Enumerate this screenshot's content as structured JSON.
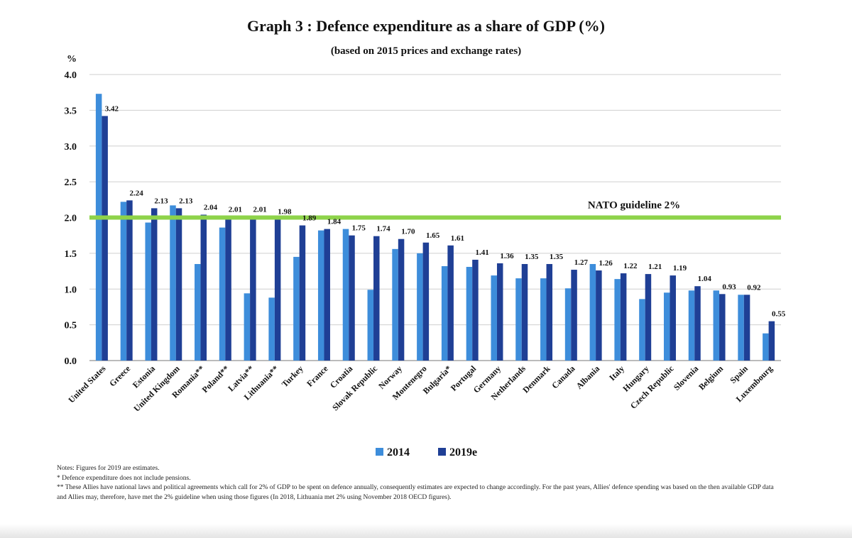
{
  "chart_data": {
    "type": "bar",
    "title": "Graph 3 : Defence expenditure as a share of GDP (%)",
    "subtitle": "(based on 2015 prices and exchange rates)",
    "ylabel": "%",
    "ylim": [
      0,
      4.0
    ],
    "yticks": [
      "0.0",
      "0.5",
      "1.0",
      "1.5",
      "2.0",
      "2.5",
      "3.0",
      "3.5",
      "4.0"
    ],
    "grid": true,
    "legend_position": "bottom-center",
    "categories": [
      "United States",
      "Greece",
      "Estonia",
      "United Kingdom",
      "Romania**",
      "Poland**",
      "Latvia**",
      "Lithuania**",
      "Turkey",
      "France",
      "Croatia",
      "Slovak Republic",
      "Norway",
      "Montenegro",
      "Bulgaria*",
      "Portugal",
      "Germany",
      "Netherlands",
      "Denmark",
      "Canada",
      "Albania",
      "Italy",
      "Hungary",
      "Czech Republic",
      "Slovenia",
      "Belgium",
      "Spain",
      "Luxembourg"
    ],
    "series": [
      {
        "name": "2014",
        "color": "#3d8ddb",
        "values": [
          3.73,
          2.22,
          1.93,
          2.17,
          1.35,
          1.86,
          0.94,
          0.88,
          1.45,
          1.82,
          1.84,
          0.99,
          1.56,
          1.5,
          1.32,
          1.31,
          1.19,
          1.15,
          1.15,
          1.01,
          1.35,
          1.14,
          0.86,
          0.95,
          0.98,
          0.98,
          0.92,
          0.38
        ]
      },
      {
        "name": "2019e",
        "color": "#1f3f95",
        "values": [
          3.42,
          2.24,
          2.13,
          2.13,
          2.04,
          2.01,
          2.01,
          1.98,
          1.89,
          1.84,
          1.75,
          1.74,
          1.7,
          1.65,
          1.61,
          1.41,
          1.36,
          1.35,
          1.35,
          1.27,
          1.26,
          1.22,
          1.21,
          1.19,
          1.04,
          0.93,
          0.92,
          0.55
        ]
      }
    ],
    "data_labels": [
      "3.42",
      "2.24",
      "2.13",
      "2.13",
      "2.04",
      "2.01",
      "2.01",
      "1.98",
      "1.89",
      "1.84",
      "1.75",
      "1.74",
      "1.70",
      "1.65",
      "1.61",
      "1.41",
      "1.36",
      "1.35",
      "1.35",
      "1.27",
      "1.26",
      "1.22",
      "1.21",
      "1.19",
      "1.04",
      "0.93",
      "0.92",
      "0.55"
    ],
    "reference_line": {
      "value": 2.0,
      "label": "NATO guideline 2%",
      "color": "#8ed34a"
    },
    "notes": [
      "Notes: Figures for 2019 are estimates.",
      "*  Defence expenditure does not include pensions.",
      "**  These Allies have national laws and political agreements which call for 2% of GDP to be spent on defence annually, consequently estimates are expected to change accordingly. For the past years, Allies' defence spending was based on the then available GDP data and Allies may, therefore, have met the 2% guideline when using those figures (In 2018, Lithuania met 2% using November 2018 OECD figures)."
    ]
  }
}
